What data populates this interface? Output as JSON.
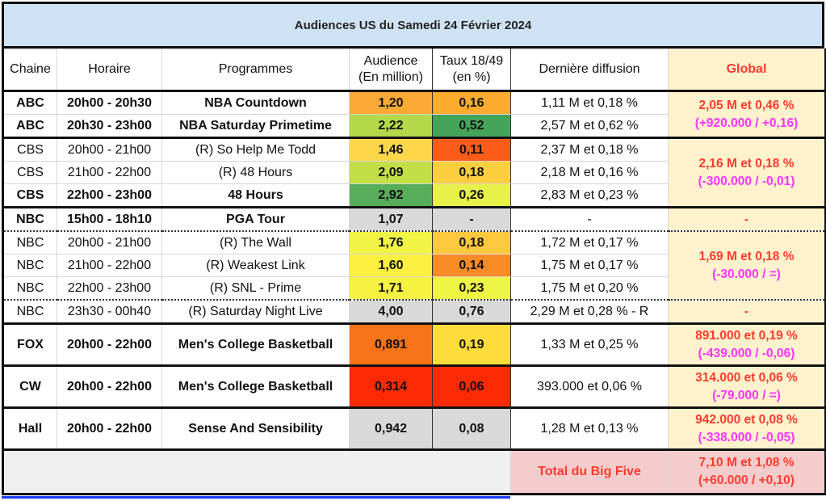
{
  "title": "Audiences US du Samedi 24 Février 2024",
  "headers": {
    "chaine": "Chaine",
    "horaire": "Horaire",
    "programmes": "Programmes",
    "audience_1": "Audience",
    "audience_2": "(En million)",
    "taux_1": "Taux 18/49",
    "taux_2": "(en %)",
    "derniere": "Dernière diffusion",
    "global": "Global"
  },
  "groups": [
    {
      "rows": [
        {
          "chaine": "ABC",
          "horaire": "20h00 - 20h30",
          "programme": "NBA Countdown",
          "audience": "1,20",
          "audience_color": "#fbab35",
          "taux": "0,16",
          "taux_color": "#fbab2e",
          "derniere": "1,11 M et 0,18 %",
          "bold": true
        },
        {
          "chaine": "ABC",
          "horaire": "20h30 - 23h00",
          "programme": "NBA Saturday Primetime",
          "audience": "2,22",
          "audience_color": "#b3d84a",
          "taux": "0,52",
          "taux_color": "#45a45a",
          "derniere": "2,57 M et 0,62 %",
          "bold": true
        }
      ],
      "global": {
        "main": "2,05 M et 0,46 %",
        "delta": "(+920.000 / +0,16)"
      }
    },
    {
      "rows": [
        {
          "chaine": "CBS",
          "horaire": "20h00 - 21h00",
          "programme": "(R) So Help Me Todd",
          "audience": "1,46",
          "audience_color": "#fdd64a",
          "taux": "0,11",
          "taux_color": "#fc5c1a",
          "derniere": "2,37 M et 0,18 %",
          "bold": false
        },
        {
          "chaine": "CBS",
          "horaire": "21h00 - 22h00",
          "programme": "(R) 48 Hours",
          "audience": "2,09",
          "audience_color": "#c3de46",
          "taux": "0,18",
          "taux_color": "#fdcf3e",
          "derniere": "2,18 M et 0,16 %",
          "bold": false
        },
        {
          "chaine": "CBS",
          "horaire": "22h00 - 23h00",
          "programme": "48 Hours",
          "audience": "2,92",
          "audience_color": "#58ad5a",
          "taux": "0,26",
          "taux_color": "#e8f14a",
          "derniere": "2,83 M et 0,23 %",
          "bold": true
        }
      ],
      "global": {
        "main": "2,16 M et 0,18 %",
        "delta": "(-300.000 / -0,01)"
      }
    },
    {
      "rows": [
        {
          "chaine": "NBC",
          "horaire": "15h00 - 18h10",
          "programme": "PGA Tour",
          "audience": "1,07",
          "audience_color": "#d9d9d9",
          "taux": "-",
          "taux_color": "#d9d9d9",
          "derniere": "-",
          "bold": true
        }
      ],
      "global": {
        "main": "-",
        "delta": ""
      }
    },
    {
      "rows": [
        {
          "chaine": "NBC",
          "horaire": "20h00 - 21h00",
          "programme": "(R) The Wall",
          "audience": "1,76",
          "audience_color": "#f0f545",
          "taux": "0,18",
          "taux_color": "#fdc93e",
          "derniere": "1,72 M et 0,17 %",
          "bold": false
        },
        {
          "chaine": "NBC",
          "horaire": "21h00 - 22h00",
          "programme": "(R) Weakest Link",
          "audience": "1,60",
          "audience_color": "#fdf040",
          "taux": "0,14",
          "taux_color": "#fa8c28",
          "derniere": "1,75 M et 0,17 %",
          "bold": false
        },
        {
          "chaine": "NBC",
          "horaire": "22h00 - 23h00",
          "programme": "(R) SNL - Prime",
          "audience": "1,71",
          "audience_color": "#f6f242",
          "taux": "0,23",
          "taux_color": "#eef543",
          "derniere": "1,75 M et 0,20 %",
          "bold": false
        }
      ],
      "global": {
        "main": "1,69 M et 0,18 %",
        "delta": "(-30.000 / =)"
      }
    },
    {
      "rows": [
        {
          "chaine": "NBC",
          "horaire": "23h30 - 00h40",
          "programme": "(R) Saturday Night Live",
          "audience": "4,00",
          "audience_color": "#d9d9d9",
          "taux": "0,76",
          "taux_color": "#d9d9d9",
          "derniere": "2,29 M et 0,28 % - R",
          "bold": false
        }
      ],
      "global": {
        "main": "-",
        "delta": ""
      }
    },
    {
      "rows": [
        {
          "chaine": "FOX",
          "horaire": "20h00 - 22h00",
          "programme": "Men's College Basketball",
          "audience": "0,891",
          "audience_color": "#f97419",
          "taux": "0,19",
          "taux_color": "#fedc3c",
          "derniere": "1,33 M et 0,25 %",
          "bold": true
        }
      ],
      "global": {
        "main": "891.000 et 0,19 %",
        "delta": "(-439.000 / -0,06)"
      }
    },
    {
      "rows": [
        {
          "chaine": "CW",
          "horaire": "20h00 - 22h00",
          "programme": "Men's College Basketball",
          "audience": "0,314",
          "audience_color": "#fb2a05",
          "taux": "0,06",
          "taux_color": "#fb2a05",
          "derniere": "393.000 et 0,06 %",
          "bold": true
        }
      ],
      "global": {
        "main": "314.000 et 0,06 %",
        "delta": "(-79.000 / =)"
      }
    },
    {
      "rows": [
        {
          "chaine": "Hall",
          "horaire": "20h00 - 22h00",
          "programme": "Sense And Sensibility",
          "audience": "0,942",
          "audience_color": "#d9d9d9",
          "taux": "0,08",
          "taux_color": "#d9d9d9",
          "derniere": "1,28 M et 0,13 %",
          "bold": true
        }
      ],
      "global": {
        "main": "942.000 et 0,08 %",
        "delta": "(-338.000 / -0,05)"
      }
    }
  ],
  "total": {
    "label": "Total du Big Five",
    "main": "7,10 M et 1,08 %",
    "delta": "(+60.000 / +0,10)"
  }
}
